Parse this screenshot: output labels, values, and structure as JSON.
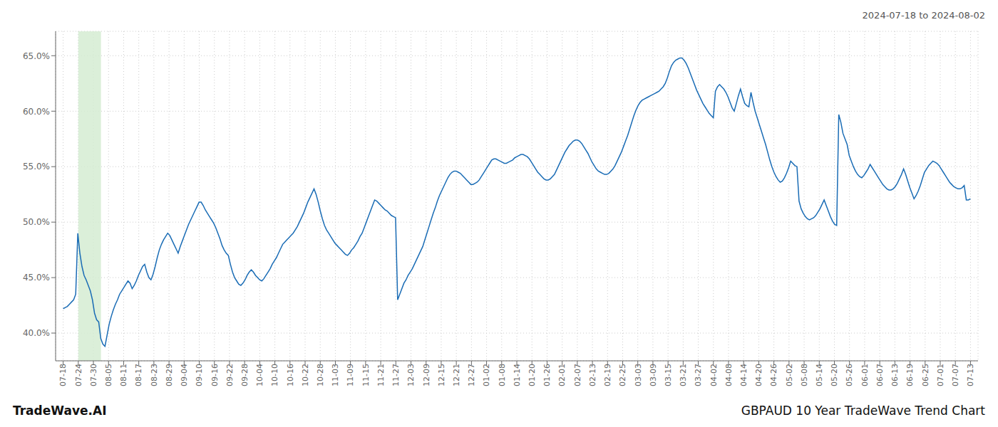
{
  "chart_data": {
    "type": "line",
    "title": "GBPAUD 10 Year TradeWave Trend Chart",
    "subtitle": "2024-07-18 to 2024-08-02",
    "annotations": [
      "TradeWave.AI"
    ],
    "color": "#1a6cb5",
    "grid": true,
    "xlim": [
      -0.5,
      60.5
    ],
    "xticks": [
      {
        "value": 0,
        "label": "07-18"
      },
      {
        "value": 1,
        "label": "07-24"
      },
      {
        "value": 2,
        "label": "07-30"
      },
      {
        "value": 3,
        "label": "08-05"
      },
      {
        "value": 4,
        "label": "08-11"
      },
      {
        "value": 5,
        "label": "08-17"
      },
      {
        "value": 6,
        "label": "08-23"
      },
      {
        "value": 7,
        "label": "08-29"
      },
      {
        "value": 8,
        "label": "09-04"
      },
      {
        "value": 9,
        "label": "09-10"
      },
      {
        "value": 10,
        "label": "09-16"
      },
      {
        "value": 11,
        "label": "09-22"
      },
      {
        "value": 12,
        "label": "09-28"
      },
      {
        "value": 13,
        "label": "10-04"
      },
      {
        "value": 14,
        "label": "10-10"
      },
      {
        "value": 15,
        "label": "10-16"
      },
      {
        "value": 16,
        "label": "10-22"
      },
      {
        "value": 17,
        "label": "10-28"
      },
      {
        "value": 18,
        "label": "11-03"
      },
      {
        "value": 19,
        "label": "11-09"
      },
      {
        "value": 20,
        "label": "11-15"
      },
      {
        "value": 21,
        "label": "11-21"
      },
      {
        "value": 22,
        "label": "11-27"
      },
      {
        "value": 23,
        "label": "12-03"
      },
      {
        "value": 24,
        "label": "12-09"
      },
      {
        "value": 25,
        "label": "12-15"
      },
      {
        "value": 26,
        "label": "12-21"
      },
      {
        "value": 27,
        "label": "12-27"
      },
      {
        "value": 28,
        "label": "01-02"
      },
      {
        "value": 29,
        "label": "01-08"
      },
      {
        "value": 30,
        "label": "01-14"
      },
      {
        "value": 31,
        "label": "01-20"
      },
      {
        "value": 32,
        "label": "01-26"
      },
      {
        "value": 33,
        "label": "02-01"
      },
      {
        "value": 34,
        "label": "02-07"
      },
      {
        "value": 35,
        "label": "02-13"
      },
      {
        "value": 36,
        "label": "02-19"
      },
      {
        "value": 37,
        "label": "02-25"
      },
      {
        "value": 38,
        "label": "03-03"
      },
      {
        "value": 39,
        "label": "03-09"
      },
      {
        "value": 40,
        "label": "03-15"
      },
      {
        "value": 41,
        "label": "03-21"
      },
      {
        "value": 42,
        "label": "03-27"
      },
      {
        "value": 43,
        "label": "04-02"
      },
      {
        "value": 44,
        "label": "04-08"
      },
      {
        "value": 45,
        "label": "04-14"
      },
      {
        "value": 46,
        "label": "04-20"
      },
      {
        "value": 47,
        "label": "04-26"
      },
      {
        "value": 48,
        "label": "05-02"
      },
      {
        "value": 49,
        "label": "05-08"
      },
      {
        "value": 50,
        "label": "05-14"
      },
      {
        "value": 51,
        "label": "05-20"
      },
      {
        "value": 52,
        "label": "05-26"
      },
      {
        "value": 53,
        "label": "06-01"
      },
      {
        "value": 54,
        "label": "06-07"
      },
      {
        "value": 55,
        "label": "06-13"
      },
      {
        "value": 56,
        "label": "06-19"
      },
      {
        "value": 57,
        "label": "06-25"
      },
      {
        "value": 58,
        "label": "07-01"
      },
      {
        "value": 59,
        "label": "07-07"
      },
      {
        "value": 60,
        "label": "07-13"
      }
    ],
    "ylim": [
      0.375,
      0.672
    ],
    "yticks": [
      {
        "value": 0.4,
        "label": "40.0%"
      },
      {
        "value": 0.45,
        "label": "45.0%"
      },
      {
        "value": 0.5,
        "label": "50.0%"
      },
      {
        "value": 0.55,
        "label": "55.0%"
      },
      {
        "value": 0.6,
        "label": "60.0%"
      },
      {
        "value": 0.65,
        "label": "65.0%"
      }
    ],
    "highlight": {
      "x_start": 1,
      "x_end": 2.5,
      "color": "#d5ecd2"
    },
    "values": [
      0.422,
      0.423,
      0.424,
      0.426,
      0.428,
      0.43,
      0.435,
      0.49,
      0.472,
      0.46,
      0.452,
      0.448,
      0.443,
      0.438,
      0.43,
      0.418,
      0.412,
      0.41,
      0.395,
      0.39,
      0.388,
      0.398,
      0.408,
      0.415,
      0.421,
      0.426,
      0.43,
      0.435,
      0.438,
      0.441,
      0.444,
      0.447,
      0.445,
      0.44,
      0.443,
      0.447,
      0.452,
      0.456,
      0.46,
      0.462,
      0.455,
      0.45,
      0.448,
      0.453,
      0.46,
      0.468,
      0.475,
      0.48,
      0.484,
      0.487,
      0.49,
      0.488,
      0.484,
      0.48,
      0.476,
      0.472,
      0.478,
      0.483,
      0.488,
      0.493,
      0.498,
      0.502,
      0.506,
      0.51,
      0.514,
      0.518,
      0.518,
      0.515,
      0.511,
      0.508,
      0.505,
      0.502,
      0.499,
      0.495,
      0.49,
      0.485,
      0.479,
      0.475,
      0.472,
      0.47,
      0.462,
      0.455,
      0.45,
      0.447,
      0.444,
      0.443,
      0.445,
      0.448,
      0.452,
      0.455,
      0.457,
      0.455,
      0.452,
      0.45,
      0.448,
      0.447,
      0.449,
      0.452,
      0.455,
      0.458,
      0.462,
      0.465,
      0.468,
      0.472,
      0.476,
      0.48,
      0.482,
      0.484,
      0.486,
      0.488,
      0.49,
      0.493,
      0.496,
      0.5,
      0.504,
      0.508,
      0.513,
      0.518,
      0.522,
      0.526,
      0.53,
      0.525,
      0.518,
      0.51,
      0.503,
      0.497,
      0.493,
      0.49,
      0.487,
      0.484,
      0.481,
      0.479,
      0.477,
      0.475,
      0.473,
      0.471,
      0.47,
      0.472,
      0.475,
      0.477,
      0.48,
      0.483,
      0.487,
      0.49,
      0.495,
      0.5,
      0.505,
      0.51,
      0.515,
      0.52,
      0.519,
      0.517,
      0.515,
      0.513,
      0.511,
      0.51,
      0.508,
      0.506,
      0.505,
      0.504,
      0.43,
      0.435,
      0.44,
      0.445,
      0.448,
      0.452,
      0.455,
      0.458,
      0.462,
      0.466,
      0.47,
      0.474,
      0.478,
      0.484,
      0.49,
      0.496,
      0.502,
      0.508,
      0.513,
      0.519,
      0.524,
      0.528,
      0.532,
      0.536,
      0.54,
      0.543,
      0.545,
      0.546,
      0.546,
      0.545,
      0.544,
      0.542,
      0.54,
      0.538,
      0.536,
      0.534,
      0.534,
      0.535,
      0.536,
      0.538,
      0.541,
      0.544,
      0.547,
      0.55,
      0.553,
      0.556,
      0.557,
      0.557,
      0.556,
      0.555,
      0.554,
      0.553,
      0.553,
      0.554,
      0.555,
      0.556,
      0.558,
      0.559,
      0.56,
      0.561,
      0.561,
      0.56,
      0.559,
      0.557,
      0.554,
      0.551,
      0.548,
      0.545,
      0.543,
      0.541,
      0.539,
      0.538,
      0.538,
      0.539,
      0.541,
      0.543,
      0.547,
      0.551,
      0.555,
      0.559,
      0.563,
      0.566,
      0.569,
      0.571,
      0.573,
      0.574,
      0.574,
      0.573,
      0.571,
      0.568,
      0.565,
      0.562,
      0.558,
      0.554,
      0.551,
      0.548,
      0.546,
      0.545,
      0.544,
      0.543,
      0.543,
      0.544,
      0.546,
      0.548,
      0.551,
      0.555,
      0.559,
      0.563,
      0.568,
      0.573,
      0.578,
      0.584,
      0.59,
      0.596,
      0.601,
      0.605,
      0.608,
      0.61,
      0.611,
      0.612,
      0.613,
      0.614,
      0.615,
      0.616,
      0.617,
      0.618,
      0.62,
      0.622,
      0.625,
      0.63,
      0.636,
      0.641,
      0.644,
      0.646,
      0.647,
      0.648,
      0.648,
      0.646,
      0.643,
      0.639,
      0.634,
      0.629,
      0.624,
      0.619,
      0.615,
      0.611,
      0.607,
      0.604,
      0.601,
      0.598,
      0.596,
      0.594,
      0.618,
      0.622,
      0.624,
      0.622,
      0.62,
      0.617,
      0.613,
      0.608,
      0.603,
      0.6,
      0.607,
      0.614,
      0.62,
      0.613,
      0.607,
      0.605,
      0.604,
      0.617,
      0.608,
      0.6,
      0.594,
      0.588,
      0.582,
      0.576,
      0.57,
      0.563,
      0.556,
      0.55,
      0.545,
      0.541,
      0.538,
      0.536,
      0.537,
      0.54,
      0.544,
      0.549,
      0.555,
      0.553,
      0.551,
      0.55,
      0.519,
      0.512,
      0.508,
      0.505,
      0.503,
      0.502,
      0.503,
      0.504,
      0.506,
      0.509,
      0.512,
      0.516,
      0.52,
      0.515,
      0.51,
      0.505,
      0.501,
      0.498,
      0.497,
      0.597,
      0.59,
      0.58,
      0.575,
      0.57,
      0.56,
      0.555,
      0.55,
      0.546,
      0.543,
      0.541,
      0.54,
      0.542,
      0.545,
      0.548,
      0.552,
      0.549,
      0.546,
      0.543,
      0.54,
      0.537,
      0.534,
      0.532,
      0.53,
      0.529,
      0.529,
      0.53,
      0.532,
      0.535,
      0.539,
      0.543,
      0.548,
      0.543,
      0.537,
      0.531,
      0.526,
      0.521,
      0.524,
      0.528,
      0.533,
      0.539,
      0.545,
      0.548,
      0.551,
      0.553,
      0.555,
      0.554,
      0.553,
      0.551,
      0.548,
      0.545,
      0.542,
      0.539,
      0.536,
      0.534,
      0.532,
      0.531,
      0.53,
      0.53,
      0.531,
      0.533,
      0.52,
      0.52,
      0.521
    ]
  }
}
